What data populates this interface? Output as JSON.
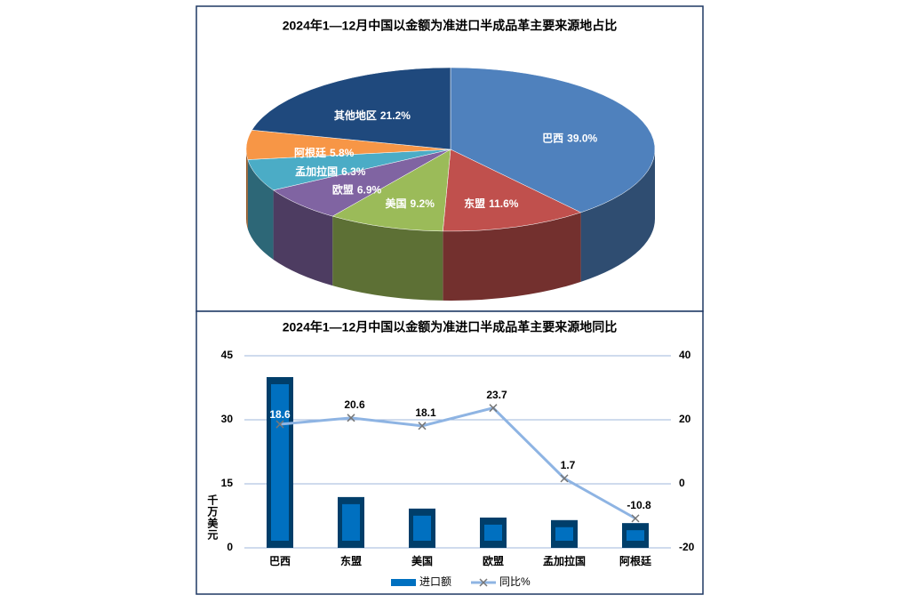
{
  "chart_data": [
    {
      "type": "pie",
      "title": "2024年1—12月中国以金额为准进口半成品革主要来源地占比",
      "categories": [
        "巴西",
        "东盟",
        "美国",
        "欧盟",
        "孟加拉国",
        "阿根廷",
        "其他地区"
      ],
      "values": [
        39.0,
        11.6,
        9.2,
        6.9,
        6.3,
        5.8,
        21.2
      ],
      "value_labels": [
        "39.0%",
        "11.6%",
        "9.2%",
        "6.9%",
        "6.3%",
        "5.8%",
        "21.2%"
      ],
      "colors": [
        "#4f81bd",
        "#c0504d",
        "#9bbb59",
        "#8064a2",
        "#4bacc6",
        "#f79646",
        "#1f497d"
      ]
    },
    {
      "type": "bar",
      "title": "2024年1—12月中国以金额为准进口半成品革主要来源地同比",
      "ylabel": "千万美元",
      "categories": [
        "巴西",
        "东盟",
        "美国",
        "欧盟",
        "孟加拉国",
        "阿根廷"
      ],
      "series": [
        {
          "name": "进口额",
          "type": "bar",
          "color": "#0070c0",
          "values": [
            40.0,
            11.9,
            9.2,
            7.1,
            6.5,
            5.8
          ]
        },
        {
          "name": "同比%",
          "type": "line",
          "axis": "y2",
          "color": "#8eb4e3",
          "values": [
            18.6,
            20.6,
            18.1,
            23.7,
            1.7,
            -10.8
          ]
        }
      ],
      "ylim": [
        0,
        45
      ],
      "yticks": [
        0,
        15,
        30,
        45
      ],
      "y2lim": [
        -20,
        40
      ],
      "y2ticks": [
        -20,
        0,
        20,
        40
      ],
      "grid": true,
      "legend": "bottom"
    }
  ]
}
